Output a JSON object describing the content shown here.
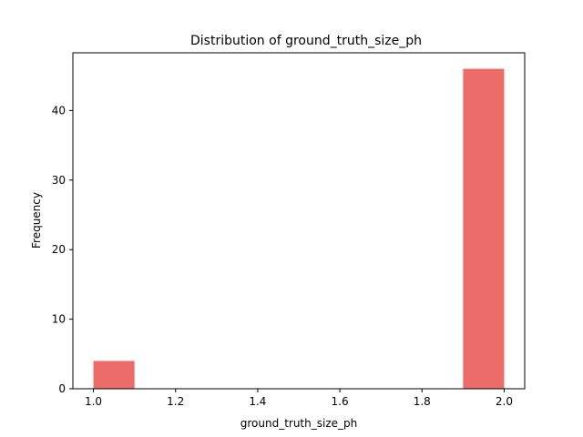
{
  "chart_data": {
    "type": "bar",
    "title": "Distribution of  ground_truth_size_ph",
    "xlabel": "ground_truth_size_ph",
    "ylabel": "Frequency",
    "xlim": [
      0.95,
      2.05
    ],
    "ylim": [
      0,
      48.3
    ],
    "xticks": [
      "1.0",
      "1.2",
      "1.4",
      "1.6",
      "1.8",
      "2.0"
    ],
    "yticks": [
      "0",
      "10",
      "20",
      "30",
      "40"
    ],
    "bins": [
      {
        "x0": 1.0,
        "x1": 1.1,
        "count": 4
      },
      {
        "x0": 1.1,
        "x1": 1.2,
        "count": 0
      },
      {
        "x0": 1.2,
        "x1": 1.3,
        "count": 0
      },
      {
        "x0": 1.3,
        "x1": 1.4,
        "count": 0
      },
      {
        "x0": 1.4,
        "x1": 1.5,
        "count": 0
      },
      {
        "x0": 1.5,
        "x1": 1.6,
        "count": 0
      },
      {
        "x0": 1.6,
        "x1": 1.7,
        "count": 0
      },
      {
        "x0": 1.7,
        "x1": 1.8,
        "count": 0
      },
      {
        "x0": 1.8,
        "x1": 1.9,
        "count": 0
      },
      {
        "x0": 1.9,
        "x1": 2.0,
        "count": 46
      }
    ],
    "bar_color": "#eb6c68",
    "grid": false,
    "legend": false
  }
}
